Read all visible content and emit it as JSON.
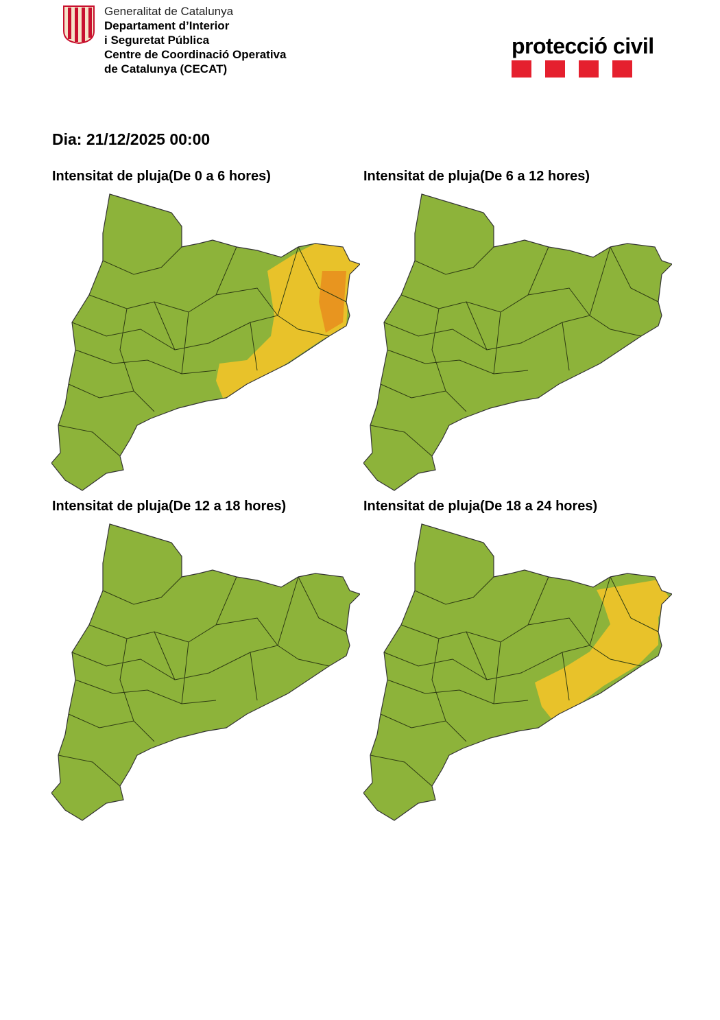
{
  "header": {
    "org_lines": [
      "Generalitat de Catalunya",
      "Departament d’Interior",
      "i Seguretat Pública",
      "Centre de Coordinació Operativa",
      "de Catalunya (CECAT)"
    ],
    "brand": "protecció civil",
    "brand_color": "#e5202e"
  },
  "date": "Dia: 21/12/2025 00:00",
  "colors": {
    "low": "#8db33a",
    "moderate": "#e8c22a",
    "high": "#e8951f"
  },
  "maps": [
    {
      "title": "Intensitat de pluja(De 0 a 6 hores)",
      "levels": [
        "low",
        "moderate",
        "high"
      ]
    },
    {
      "title": "Intensitat de pluja(De 6 a 12 hores)",
      "levels": [
        "low"
      ]
    },
    {
      "title": "Intensitat de pluja(De 12 a 18 hores)",
      "levels": [
        "low"
      ]
    },
    {
      "title": "Intensitat de pluja(De 18 a 24 hores)",
      "levels": [
        "low",
        "moderate"
      ]
    }
  ]
}
